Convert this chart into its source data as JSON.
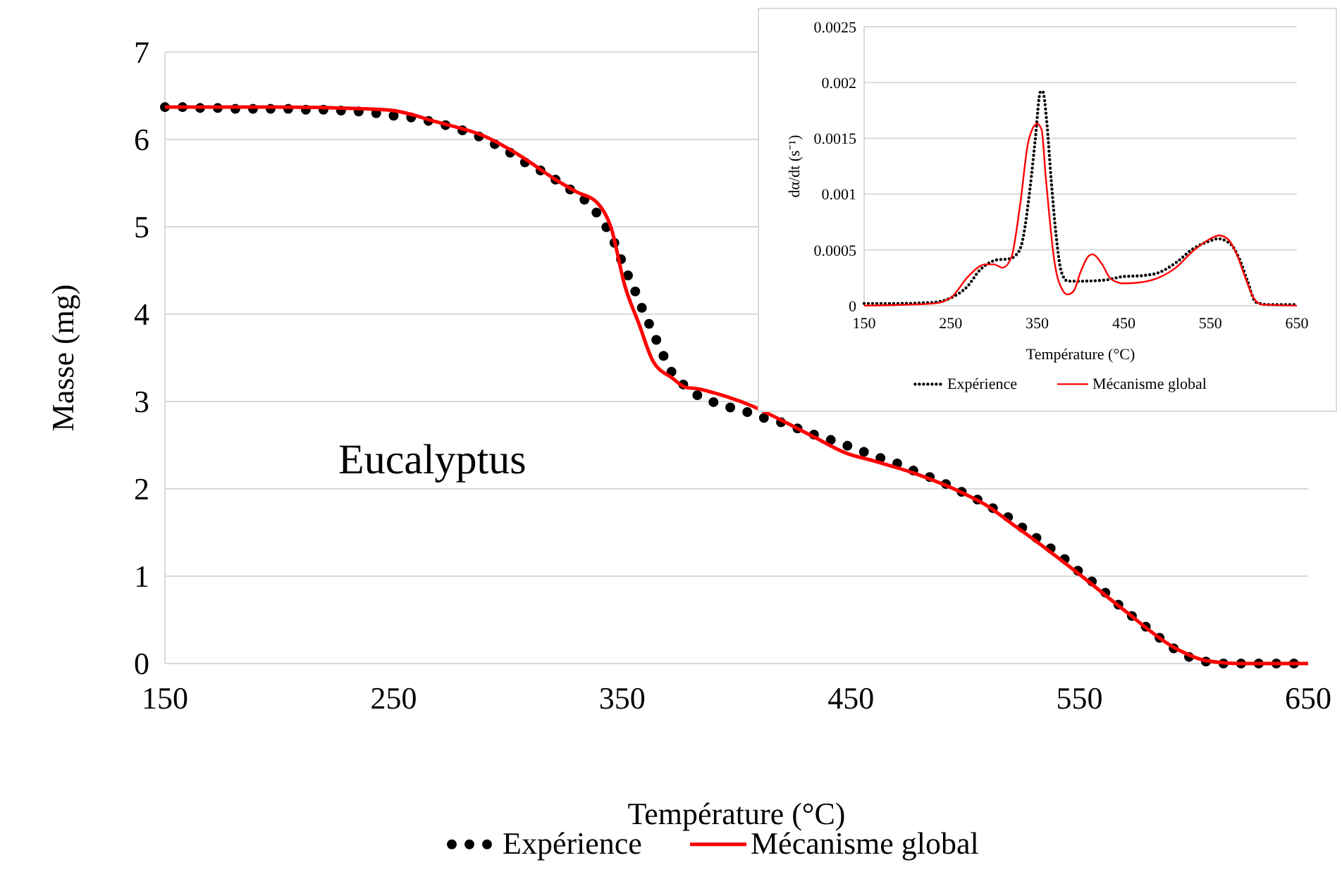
{
  "chart_data": [
    {
      "type": "line",
      "xlabel": "Température (°C)",
      "ylabel": "Masse (mg)",
      "xlim": [
        150,
        650
      ],
      "ylim": [
        0,
        7
      ],
      "xticks": [
        150,
        250,
        350,
        450,
        550,
        650
      ],
      "yticks": [
        0,
        1,
        2,
        3,
        4,
        5,
        6,
        7
      ],
      "grid": "y",
      "legend": "bottom",
      "annotations": [
        "Eucalyptus"
      ],
      "series": [
        {
          "name": "Expérience",
          "color": "#000000",
          "line_style": "dotted",
          "x": [
            150,
            157.6,
            165.4,
            173.2,
            181,
            188.8,
            196.4,
            204.3,
            211.9,
            219.7,
            227.5,
            235.1,
            242.7,
            250.5,
            258.1,
            265.7,
            273.3,
            280.7,
            287.7,
            294.7,
            301.5,
            308,
            314.6,
            321.4,
            327.6,
            333.9,
            339.1,
            343.4,
            346.7,
            349.6,
            352.6,
            355.7,
            358.8,
            361.9,
            365,
            368.1,
            371.8,
            376.9,
            383,
            390.2,
            397.4,
            404.6,
            412.2,
            419.6,
            426.8,
            434,
            441.2,
            448.8,
            456,
            463.2,
            470.4,
            477.2,
            485,
            492,
            498.9,
            505.9,
            512.7,
            519.1,
            525.3,
            531.6,
            537.8,
            543.8,
            549.9,
            555.9,
            561.8,
            567.6,
            573.6,
            579.5,
            585.7,
            592,
            598.4,
            605.8,
            613.6,
            621.4,
            629,
            636.8,
            644.5
          ],
          "values": [
            6.37,
            6.37,
            6.36,
            6.36,
            6.35,
            6.35,
            6.35,
            6.35,
            6.34,
            6.34,
            6.33,
            6.32,
            6.3,
            6.27,
            6.25,
            6.21,
            6.16,
            6.1,
            6.03,
            5.94,
            5.84,
            5.73,
            5.64,
            5.53,
            5.42,
            5.3,
            5.15,
            4.98,
            4.81,
            4.62,
            4.44,
            4.26,
            4.06,
            3.88,
            3.7,
            3.52,
            3.33,
            3.19,
            3.07,
            2.99,
            2.93,
            2.88,
            2.81,
            2.76,
            2.69,
            2.62,
            2.56,
            2.49,
            2.42,
            2.35,
            2.29,
            2.21,
            2.13,
            2.05,
            1.96,
            1.87,
            1.77,
            1.67,
            1.55,
            1.43,
            1.31,
            1.19,
            1.05,
            0.93,
            0.8,
            0.66,
            0.53,
            0.41,
            0.28,
            0.16,
            0.07,
            0.02,
            0,
            0,
            0,
            0,
            0
          ]
        },
        {
          "name": "Mécanisme global",
          "color": "#ff0000",
          "line_style": "solid",
          "x": [
            150,
            200,
            238.2,
            250,
            269,
            289.5,
            305,
            320.3,
            330,
            338.9,
            345,
            351.2,
            357.3,
            363.5,
            371.8,
            378,
            382,
            390,
            396.4,
            406.7,
            420,
            433.4,
            447.8,
            460,
            478.6,
            499.1,
            510,
            520.4,
            530,
            550.5,
            570,
            591.6,
            606,
            620,
            650
          ],
          "values": [
            6.37,
            6.37,
            6.35,
            6.33,
            6.2,
            6.04,
            5.82,
            5.55,
            5.4,
            5.28,
            5.0,
            4.32,
            3.89,
            3.46,
            3.27,
            3.16,
            3.15,
            3.1,
            3.05,
            2.95,
            2.78,
            2.6,
            2.41,
            2.32,
            2.17,
            1.95,
            1.8,
            1.6,
            1.42,
            1.01,
            0.6,
            0.18,
            0.03,
            0,
            0
          ]
        }
      ]
    },
    {
      "type": "line",
      "xlabel": "Température (°C)",
      "ylabel": "dα/dt (s⁻¹)",
      "xlim": [
        150,
        650
      ],
      "ylim": [
        0,
        0.0025
      ],
      "xticks": [
        150,
        250,
        350,
        450,
        550,
        650
      ],
      "yticks": [
        0,
        0.0005,
        0.001,
        0.0015,
        0.002,
        0.0025
      ],
      "grid": "y",
      "legend": "bottom",
      "series": [
        {
          "name": "Expérience",
          "color": "#000000",
          "line_style": "dotted",
          "x": [
            150,
            190,
            230.7,
            250,
            269,
            283.8,
            296,
            303,
            317.6,
            325,
            332,
            341.8,
            347.6,
            353.9,
            356.3,
            361,
            366,
            371.7,
            378,
            385.3,
            400,
            428.7,
            448,
            472,
            491.5,
            511,
            530,
            549.5,
            559,
            573.7,
            583,
            593,
            602.7,
            617,
            639,
            650
          ],
          "values": [
            2e-05,
            2e-05,
            3e-05,
            7e-05,
            0.00017,
            0.00032,
            0.00039,
            0.00041,
            0.00042,
            0.00045,
            0.00055,
            0.00106,
            0.00148,
            0.00192,
            0.00192,
            0.00165,
            0.00114,
            0.00064,
            0.0003,
            0.00022,
            0.00022,
            0.00023,
            0.00026,
            0.00027,
            0.0003,
            0.00039,
            0.00051,
            0.00058,
            0.0006,
            0.00055,
            0.00043,
            0.00022,
            3e-05,
            1e-05,
            1e-05,
            1e-05
          ]
        },
        {
          "name": "Mécanisme global",
          "color": "#ff0000",
          "line_style": "solid",
          "x": [
            150,
            230,
            250,
            270,
            290,
            300,
            310,
            320,
            330,
            340,
            350,
            355,
            360,
            370,
            380,
            385,
            392,
            400,
            410,
            414,
            425,
            435,
            450,
            470,
            490,
            510,
            530,
            550,
            560,
            570,
            580,
            590,
            600,
            610,
            650
          ],
          "values": [
            0,
            2e-05,
            7e-05,
            0.00026,
            0.00037,
            0.00037,
            0.00034,
            0.00043,
            0.00089,
            0.00148,
            0.00163,
            0.00158,
            0.00114,
            0.00039,
            0.00013,
            0.0001,
            0.00013,
            0.0003,
            0.00045,
            0.00046,
            0.00037,
            0.00024,
            0.0002,
            0.00021,
            0.00025,
            0.00034,
            0.00049,
            0.0006,
            0.00063,
            0.0006,
            0.00047,
            0.00026,
            7e-05,
            1e-05,
            0
          ]
        }
      ]
    }
  ]
}
